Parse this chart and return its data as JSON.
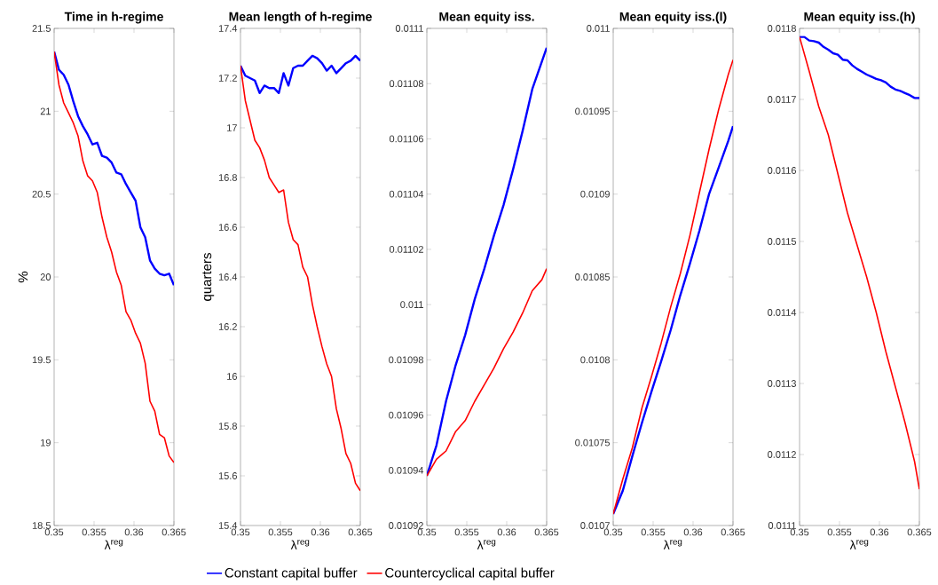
{
  "chart_data": [
    {
      "type": "line",
      "title": "Time in h-regime",
      "xlabel": "λ$^{reg}$",
      "ylabel": "%",
      "xlim": [
        0.35,
        0.365
      ],
      "xticks": [
        0.35,
        0.355,
        0.36,
        0.365
      ],
      "ylim": [
        18.5,
        21.5
      ],
      "yticks": [
        18.5,
        19,
        19.5,
        20,
        20.5,
        21,
        21.5
      ],
      "legend": "bottom",
      "line_style": "solid",
      "marker": "none",
      "grid": false,
      "series": [
        {
          "name": "Constant capital buffer",
          "color": "#0000ff",
          "x": [
            0.35,
            0.3506,
            0.3512,
            0.3518,
            0.3524,
            0.353,
            0.3536,
            0.3542,
            0.3548,
            0.3554,
            0.356,
            0.3566,
            0.3572,
            0.3578,
            0.3584,
            0.359,
            0.3596,
            0.3602,
            0.3608,
            0.3614,
            0.362,
            0.3626,
            0.3632,
            0.3638,
            0.3644,
            0.365
          ],
          "values": [
            21.36,
            21.25,
            21.22,
            21.16,
            21.06,
            20.97,
            20.91,
            20.86,
            20.8,
            20.81,
            20.73,
            20.72,
            20.69,
            20.63,
            20.62,
            20.56,
            20.51,
            20.46,
            20.3,
            20.24,
            20.1,
            20.05,
            20.02,
            20.01,
            20.02,
            19.95
          ]
        },
        {
          "name": "Countercyclical capital buffer",
          "color": "#ff0000",
          "x": [
            0.35,
            0.3506,
            0.3512,
            0.3518,
            0.3524,
            0.353,
            0.3536,
            0.3542,
            0.3548,
            0.3554,
            0.356,
            0.3566,
            0.3572,
            0.3578,
            0.3584,
            0.359,
            0.3596,
            0.3602,
            0.3608,
            0.3614,
            0.362,
            0.3626,
            0.3632,
            0.3638,
            0.3644,
            0.365
          ],
          "values": [
            21.36,
            21.16,
            21.05,
            20.99,
            20.93,
            20.85,
            20.7,
            20.61,
            20.58,
            20.51,
            20.36,
            20.24,
            20.15,
            20.03,
            19.95,
            19.79,
            19.74,
            19.66,
            19.6,
            19.48,
            19.25,
            19.19,
            19.05,
            19.03,
            18.92,
            18.88
          ]
        }
      ]
    },
    {
      "type": "line",
      "title": "Mean length of h-regime",
      "xlabel": "λ$^{reg}$",
      "ylabel": "quarters",
      "xlim": [
        0.35,
        0.365
      ],
      "xticks": [
        0.35,
        0.355,
        0.36,
        0.365
      ],
      "ylim": [
        15.4,
        17.4
      ],
      "yticks": [
        15.4,
        15.6,
        15.8,
        16,
        16.2,
        16.4,
        16.6,
        16.8,
        17,
        17.2,
        17.4
      ],
      "line_style": "solid",
      "marker": "none",
      "grid": false,
      "series": [
        {
          "color": "#0000ff",
          "x": [
            0.35,
            0.3506,
            0.3512,
            0.3518,
            0.3524,
            0.353,
            0.3536,
            0.3542,
            0.3548,
            0.3554,
            0.356,
            0.3566,
            0.3572,
            0.3578,
            0.3584,
            0.359,
            0.3596,
            0.3602,
            0.3608,
            0.3614,
            0.362,
            0.3626,
            0.3632,
            0.3638,
            0.3644,
            0.365
          ],
          "values": [
            17.25,
            17.21,
            17.2,
            17.19,
            17.14,
            17.17,
            17.16,
            17.16,
            17.14,
            17.22,
            17.17,
            17.24,
            17.25,
            17.25,
            17.27,
            17.29,
            17.28,
            17.26,
            17.23,
            17.25,
            17.22,
            17.24,
            17.26,
            17.27,
            17.29,
            17.27
          ]
        },
        {
          "color": "#ff0000",
          "x": [
            0.35,
            0.3506,
            0.3512,
            0.3518,
            0.3524,
            0.353,
            0.3536,
            0.3542,
            0.3548,
            0.3554,
            0.356,
            0.3566,
            0.3572,
            0.3578,
            0.3584,
            0.359,
            0.3596,
            0.3602,
            0.3608,
            0.3614,
            0.362,
            0.3626,
            0.3632,
            0.3638,
            0.3644,
            0.365
          ],
          "values": [
            17.25,
            17.11,
            17.03,
            16.95,
            16.92,
            16.87,
            16.8,
            16.77,
            16.74,
            16.75,
            16.62,
            16.55,
            16.53,
            16.44,
            16.4,
            16.29,
            16.2,
            16.12,
            16.05,
            16.0,
            15.87,
            15.79,
            15.69,
            15.65,
            15.57,
            15.54
          ]
        }
      ]
    },
    {
      "type": "line",
      "title": "Mean equity iss.",
      "xlabel": "λ$^{reg}$",
      "xlim": [
        0.35,
        0.365
      ],
      "xticks": [
        0.35,
        0.355,
        0.36,
        0.365
      ],
      "ylim": [
        0.01092,
        0.0111
      ],
      "yticks": [
        0.01092,
        0.01094,
        0.01096,
        0.01098,
        0.011,
        0.01102,
        0.01104,
        0.01106,
        0.01108,
        0.0111
      ],
      "line_style": "solid",
      "marker": "none",
      "grid": false,
      "series": [
        {
          "color": "#0000ff",
          "x": [
            0.35,
            0.3512,
            0.3524,
            0.3536,
            0.3548,
            0.356,
            0.3572,
            0.3584,
            0.3596,
            0.3608,
            0.362,
            0.3632,
            0.3644,
            0.365
          ],
          "values": [
            0.010938,
            0.010949,
            0.010965,
            0.010978,
            0.010989,
            0.011002,
            0.011013,
            0.011025,
            0.011036,
            0.011049,
            0.011063,
            0.011078,
            0.011088,
            0.011093
          ]
        },
        {
          "color": "#ff0000",
          "x": [
            0.35,
            0.3512,
            0.3524,
            0.3536,
            0.3548,
            0.356,
            0.3572,
            0.3584,
            0.3596,
            0.3608,
            0.362,
            0.3632,
            0.3644,
            0.365
          ],
          "values": [
            0.010938,
            0.010944,
            0.010947,
            0.010954,
            0.010958,
            0.010965,
            0.010971,
            0.010977,
            0.010984,
            0.01099,
            0.010997,
            0.011005,
            0.011009,
            0.011013
          ]
        }
      ]
    },
    {
      "type": "line",
      "title": "Mean equity iss.(l)",
      "xlabel": "λ$^{reg}$",
      "xlim": [
        0.35,
        0.365
      ],
      "xticks": [
        0.35,
        0.355,
        0.36,
        0.365
      ],
      "ylim": [
        0.0107,
        0.011
      ],
      "yticks": [
        0.0107,
        0.01075,
        0.0108,
        0.01085,
        0.0109,
        0.01095,
        0.011
      ],
      "line_style": "solid",
      "marker": "none",
      "grid": false,
      "series": [
        {
          "color": "#0000ff",
          "x": [
            0.35,
            0.3512,
            0.3524,
            0.3536,
            0.3548,
            0.356,
            0.3572,
            0.3584,
            0.3596,
            0.3608,
            0.362,
            0.3632,
            0.3644,
            0.365
          ],
          "values": [
            0.010707,
            0.010721,
            0.010742,
            0.010762,
            0.010781,
            0.010799,
            0.010818,
            0.010839,
            0.010858,
            0.010878,
            0.0109,
            0.010916,
            0.010932,
            0.010941
          ]
        },
        {
          "color": "#ff0000",
          "x": [
            0.35,
            0.3512,
            0.3524,
            0.3536,
            0.3548,
            0.356,
            0.3572,
            0.3584,
            0.3596,
            0.3608,
            0.362,
            0.3632,
            0.3644,
            0.365
          ],
          "values": [
            0.010707,
            0.010728,
            0.010747,
            0.010771,
            0.01079,
            0.01081,
            0.010832,
            0.010852,
            0.010875,
            0.010901,
            0.010927,
            0.010951,
            0.010972,
            0.010981
          ]
        }
      ]
    },
    {
      "type": "line",
      "title": "Mean equity iss.(h)",
      "xlabel": "λ$^{reg}$",
      "xlim": [
        0.35,
        0.365
      ],
      "xticks": [
        0.35,
        0.355,
        0.36,
        0.365
      ],
      "ylim": [
        0.0111,
        0.0118
      ],
      "yticks": [
        0.0111,
        0.0112,
        0.0113,
        0.0114,
        0.0115,
        0.0116,
        0.0117,
        0.0118
      ],
      "line_style": "solid",
      "marker": "none",
      "grid": false,
      "series": [
        {
          "color": "#0000ff",
          "x": [
            0.35,
            0.3506,
            0.3512,
            0.3518,
            0.3524,
            0.353,
            0.3536,
            0.3542,
            0.3548,
            0.3554,
            0.356,
            0.3566,
            0.3572,
            0.3578,
            0.3584,
            0.359,
            0.3596,
            0.3602,
            0.3608,
            0.3614,
            0.362,
            0.3626,
            0.3632,
            0.3638,
            0.3644,
            0.365
          ],
          "values": [
            0.011788,
            0.011788,
            0.011783,
            0.011782,
            0.01178,
            0.011774,
            0.01177,
            0.011765,
            0.011763,
            0.011756,
            0.011755,
            0.011748,
            0.011743,
            0.011739,
            0.011735,
            0.011732,
            0.011729,
            0.011727,
            0.011724,
            0.011718,
            0.011714,
            0.011712,
            0.011709,
            0.011706,
            0.011702,
            0.011702
          ]
        },
        {
          "color": "#ff0000",
          "x": [
            0.35,
            0.3512,
            0.3524,
            0.3536,
            0.3548,
            0.356,
            0.3572,
            0.3584,
            0.3596,
            0.3608,
            0.362,
            0.3632,
            0.3644,
            0.365
          ],
          "values": [
            0.011788,
            0.01174,
            0.01169,
            0.01165,
            0.011595,
            0.01154,
            0.011495,
            0.01145,
            0.0114,
            0.011345,
            0.011295,
            0.011245,
            0.01119,
            0.011151
          ]
        }
      ]
    }
  ]
}
